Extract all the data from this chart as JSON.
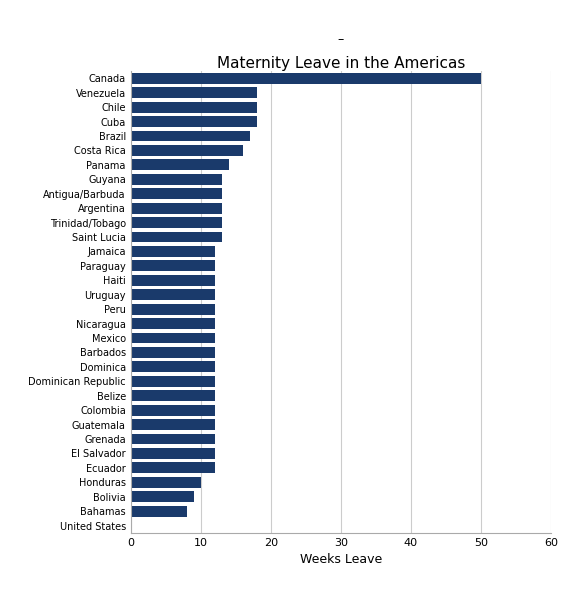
{
  "title": "Maternity Leave in the Americas",
  "subtitle": "–",
  "xlabel": "Weeks Leave",
  "countries": [
    "United States",
    "Bahamas",
    "Bolivia",
    "Honduras",
    "Ecuador",
    "El Salvador",
    "Grenada",
    "Guatemala",
    "Colombia",
    "Belize",
    "Dominican Republic",
    "Dominica",
    "Barbados",
    "Mexico",
    "Nicaragua",
    "Peru",
    "Uruguay",
    "Haiti",
    "Paraguay",
    "Jamaica",
    "Saint Lucia",
    "Trinidad/Tobago",
    "Argentina",
    "Antigua/Barbuda",
    "Guyana",
    "Panama",
    "Costa Rica",
    "Brazil",
    "Cuba",
    "Chile",
    "Venezuela",
    "Canada"
  ],
  "values": [
    0,
    8,
    9,
    10,
    12,
    12,
    12,
    12,
    12,
    12,
    12,
    12,
    12,
    12,
    12,
    12,
    12,
    12,
    12,
    12,
    13,
    13,
    13,
    13,
    13,
    14,
    16,
    17,
    18,
    18,
    18,
    50
  ],
  "bar_color": "#1a3a6b",
  "background_color": "#ffffff",
  "xlim": [
    0,
    60
  ],
  "xticks": [
    0,
    10,
    20,
    30,
    40,
    50,
    60
  ],
  "grid_color": "#cccccc",
  "title_fontsize": 11,
  "subtitle_fontsize": 9,
  "label_fontsize": 7,
  "tick_fontsize": 8,
  "xlabel_fontsize": 9,
  "bar_height": 0.75
}
